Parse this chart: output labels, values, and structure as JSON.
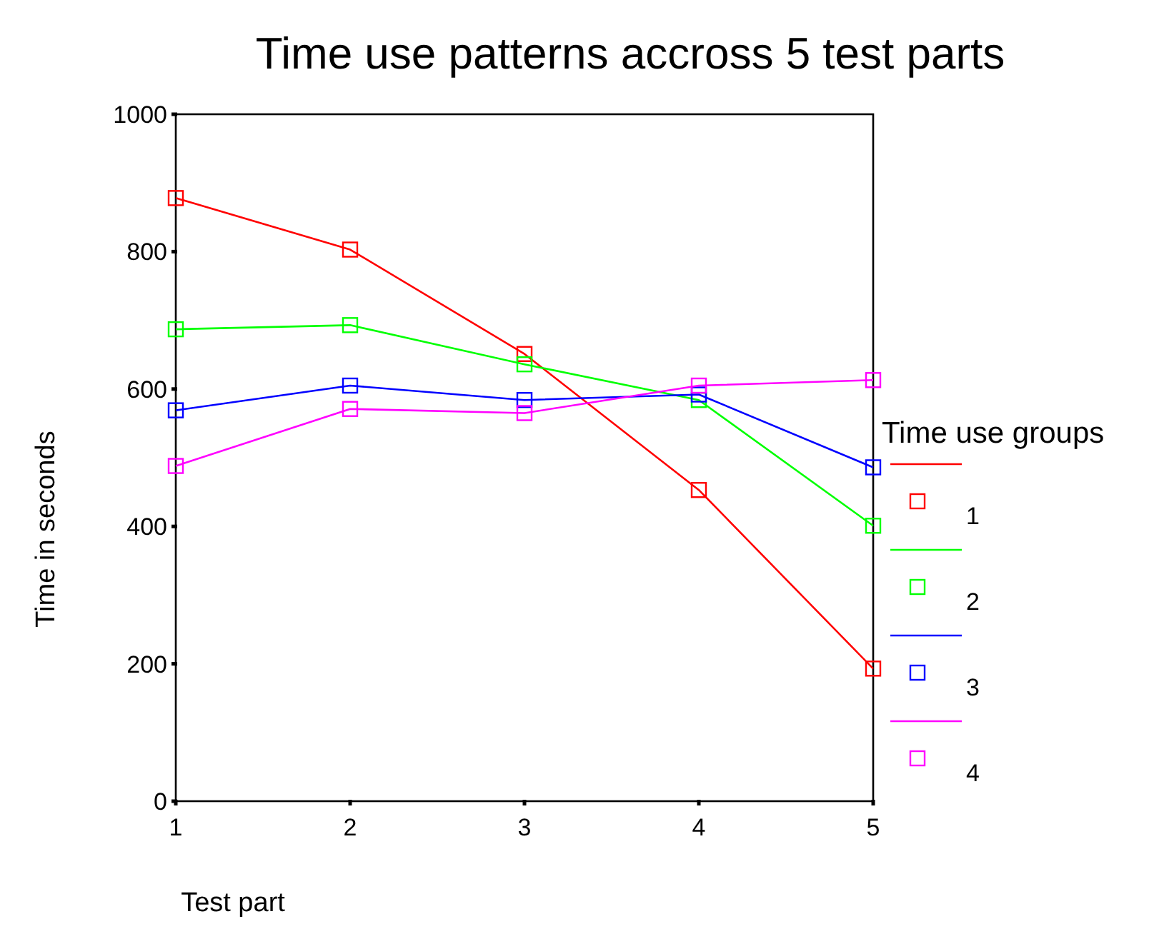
{
  "chart_data": {
    "type": "line",
    "title": "Time use patterns accross 5 test parts",
    "xlabel": "Test part",
    "ylabel": "Time in seconds",
    "legend_title": "Time use groups",
    "legend": "right",
    "marker": "square",
    "line_style": "solid",
    "grid": false,
    "x": [
      1,
      2,
      3,
      4,
      5
    ],
    "xlim": [
      1,
      5
    ],
    "xticks": [
      1,
      2,
      3,
      4,
      5
    ],
    "ylim": [
      0,
      1000
    ],
    "yticks": [
      0,
      200,
      400,
      600,
      800,
      1000
    ],
    "series": [
      {
        "name": "1",
        "color": "#ff0000",
        "values": [
          878,
          803,
          651,
          453,
          193
        ]
      },
      {
        "name": "2",
        "color": "#00ff00",
        "values": [
          687,
          693,
          636,
          584,
          401
        ]
      },
      {
        "name": "3",
        "color": "#0000ff",
        "values": [
          569,
          605,
          584,
          592,
          486
        ]
      },
      {
        "name": "4",
        "color": "#ff00ff",
        "values": [
          488,
          571,
          565,
          605,
          613
        ]
      }
    ]
  }
}
